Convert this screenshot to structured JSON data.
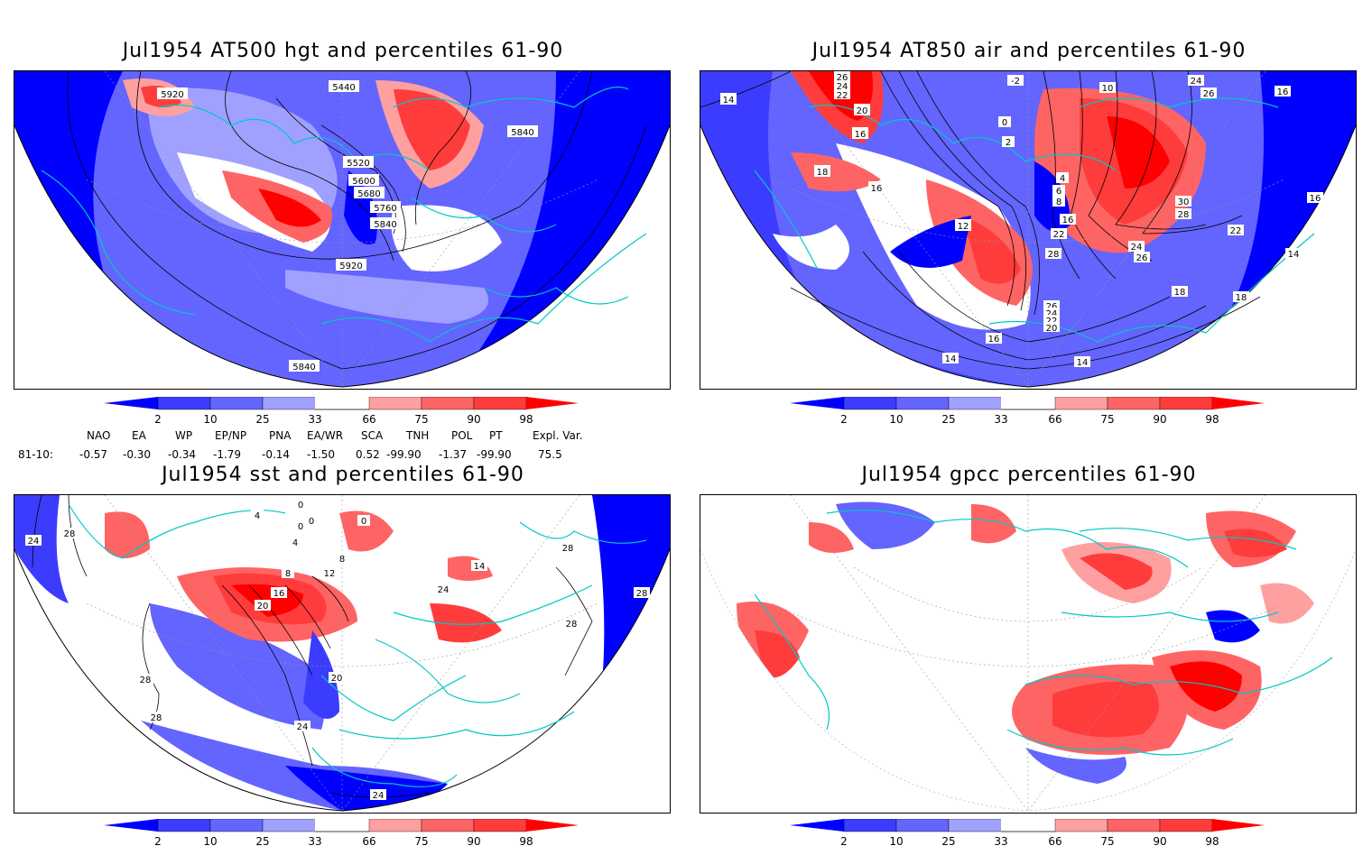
{
  "panels": [
    {
      "title": "Jul1954 AT500 hgt and percentiles 61-90",
      "contour_labels": [
        "5920",
        "5440",
        "5840",
        "5520",
        "5600",
        "5680",
        "5760",
        "5840",
        "5920",
        "5840"
      ]
    },
    {
      "title": "Jul1954 AT850 air and percentiles 61-90",
      "contour_labels": [
        "14",
        "26",
        "24",
        "22",
        "20",
        "16",
        "18",
        "16",
        "12",
        "-2",
        "0",
        "2",
        "10",
        "24",
        "26",
        "16",
        "4",
        "6",
        "8",
        "16",
        "22",
        "28",
        "24",
        "26",
        "30",
        "28",
        "22",
        "16",
        "18",
        "18",
        "14",
        "26",
        "24",
        "22",
        "20",
        "16",
        "14",
        "14"
      ]
    },
    {
      "title": "Jul1954 sst and percentiles 61-90",
      "contour_labels": [
        "24",
        "28",
        "0",
        "4",
        "0",
        "0",
        "0",
        "4",
        "8",
        "12",
        "8",
        "16",
        "20",
        "14",
        "24",
        "28",
        "28",
        "28",
        "28",
        "20",
        "28",
        "24",
        "24"
      ]
    },
    {
      "title": "Jul1954 gpcc percentiles 61-90",
      "contour_labels": []
    }
  ],
  "colorbar": {
    "labels": [
      "2",
      "10",
      "25",
      "33",
      "66",
      "75",
      "90",
      "98"
    ],
    "colors": [
      "#0000ff",
      "#3c3cff",
      "#6464ff",
      "#a0a0ff",
      "#ffffff",
      "#ffa0a0",
      "#ff6464",
      "#ff3c3c",
      "#ff0000"
    ]
  },
  "teleconnections": {
    "headers": [
      "NAO",
      "EA",
      "WP",
      "EP/NP",
      "PNA",
      "EA/WR",
      "SCA",
      "TNH",
      "POL",
      "PT",
      "Expl. Var."
    ],
    "row_label": "81-10:",
    "values": [
      "-0.57",
      "-0.30",
      "-0.34",
      "-1.79",
      "-0.14",
      "-1.50",
      "0.52",
      "-99.90",
      "-1.37",
      "-99.90",
      "75.5"
    ]
  }
}
